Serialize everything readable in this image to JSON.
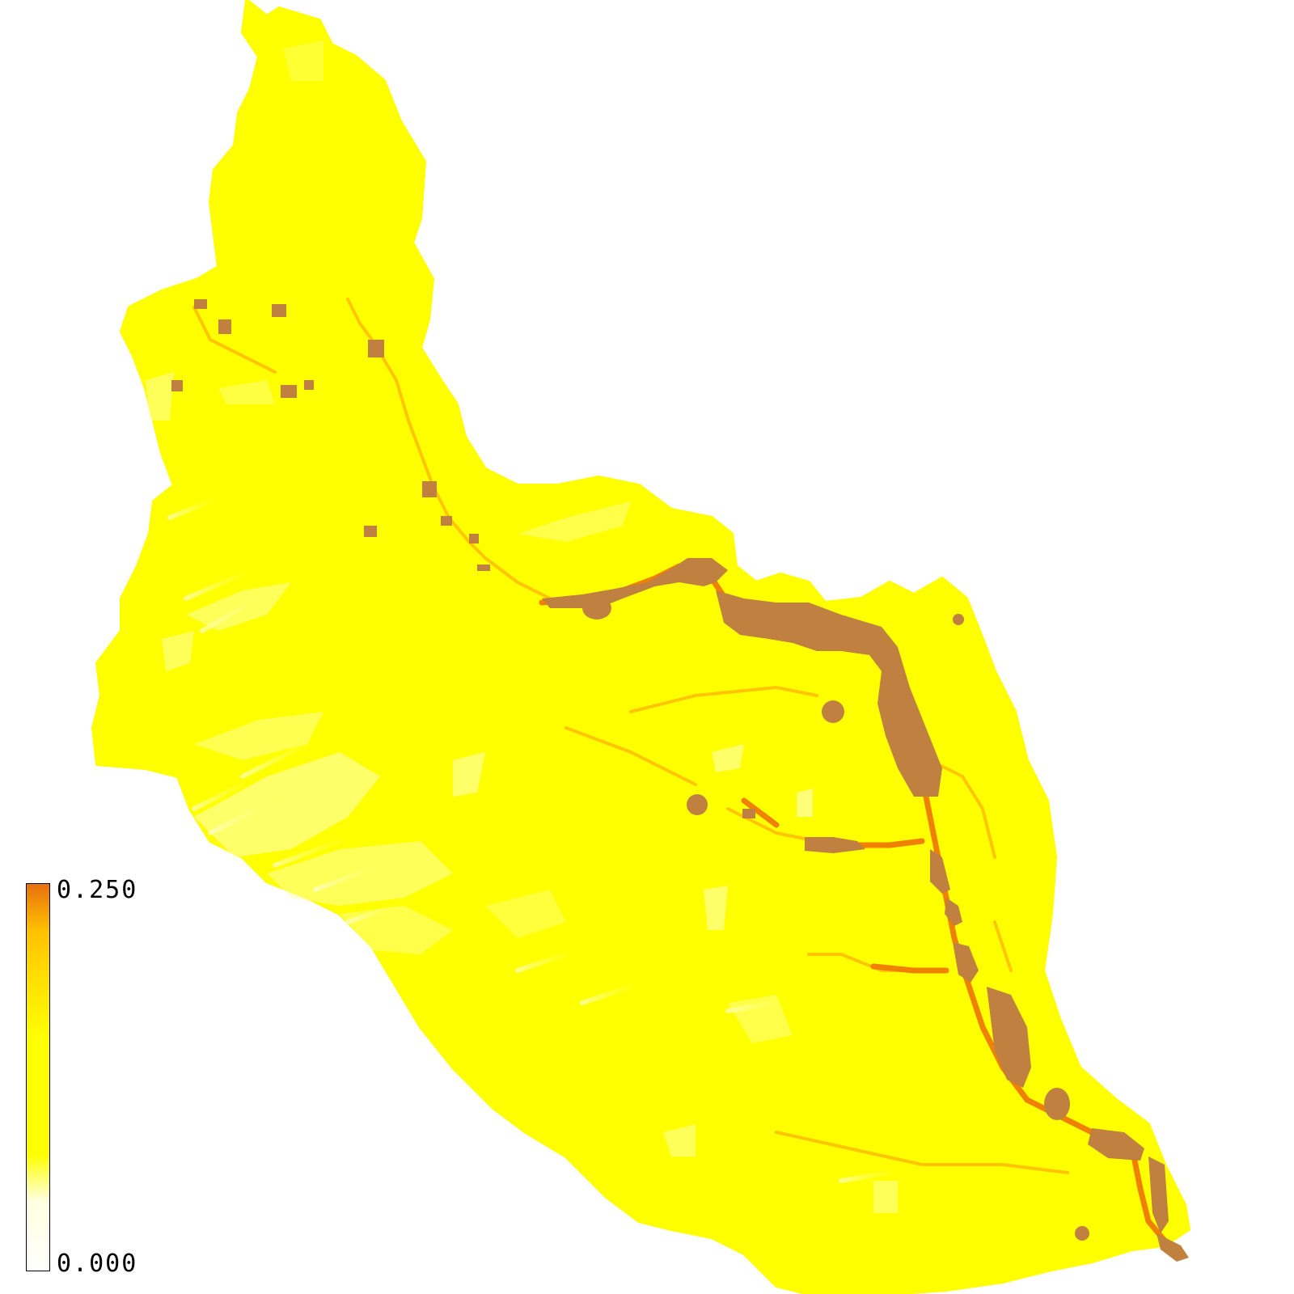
{
  "map": {
    "colors": {
      "background": "#ffffff",
      "base": "#ffff00",
      "light": "#ffffc8",
      "medium": "#ffc000",
      "high": "#f08000",
      "channel": "#c08040"
    }
  },
  "legend": {
    "max_label": "0.250",
    "min_label": "0.000",
    "gradient_stops": [
      "#ffffff",
      "#ffffe0",
      "#ffff00",
      "#ffff00",
      "#ffe000",
      "#ffc000",
      "#e87010"
    ],
    "gradient_positions": [
      0,
      18,
      30,
      60,
      75,
      88,
      100
    ]
  }
}
